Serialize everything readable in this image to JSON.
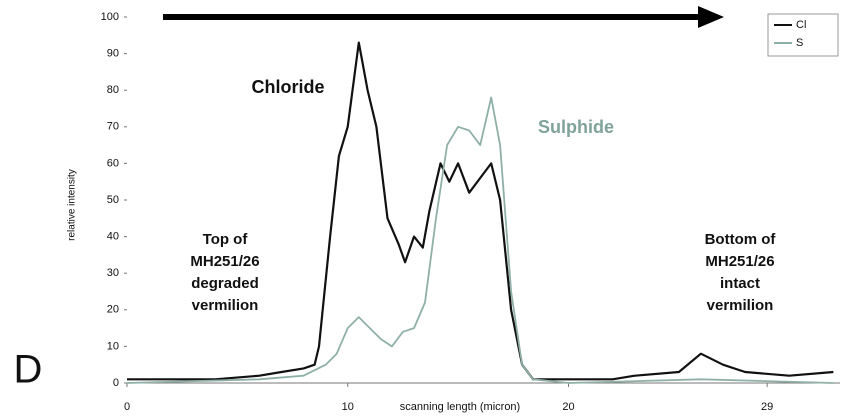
{
  "chart_data": {
    "type": "line",
    "panel_label": "D",
    "x_label": "scanning length (micron)",
    "y_label": "relative intensity",
    "xlim": [
      0,
      32.3
    ],
    "xticks": [
      0,
      10,
      20,
      29
    ],
    "ylim": [
      0,
      100
    ],
    "yticks": [
      0,
      10,
      20,
      30,
      40,
      50,
      60,
      70,
      80,
      90,
      100
    ],
    "legend": "top-right",
    "series": [
      {
        "name": "Cl",
        "color": "#111111",
        "x": [
          0,
          2,
          4,
          6,
          7,
          8,
          8.5,
          8.7,
          9.2,
          9.6,
          10,
          10.5,
          10.9,
          11.3,
          11.8,
          12.3,
          12.6,
          13,
          13.4,
          13.7,
          14.2,
          14.6,
          15,
          15.5,
          16,
          16.5,
          16.9,
          17.4,
          17.9,
          18.4,
          20,
          22,
          23,
          25,
          26,
          27,
          28,
          30,
          32
        ],
        "values": [
          1,
          1,
          1,
          2,
          3,
          4,
          5,
          10,
          40,
          62,
          70,
          93,
          80,
          70,
          45,
          38,
          33,
          40,
          37,
          47,
          60,
          55,
          60,
          52,
          56,
          60,
          50,
          20,
          5,
          1,
          1,
          1,
          2,
          3,
          8,
          5,
          3,
          2,
          3
        ]
      },
      {
        "name": "S",
        "color": "#8fb0a8",
        "x": [
          0,
          6,
          8,
          9,
          9.5,
          10,
          10.5,
          11,
          11.5,
          12,
          12.5,
          13,
          13.5,
          14,
          14.5,
          15,
          15.5,
          16,
          16.5,
          16.9,
          17.4,
          17.9,
          18.4,
          20,
          26,
          32
        ],
        "values": [
          0,
          1,
          2,
          5,
          8,
          15,
          18,
          15,
          12,
          10,
          14,
          15,
          22,
          45,
          65,
          70,
          69,
          65,
          78,
          65,
          25,
          5,
          1,
          0,
          1,
          0
        ]
      }
    ],
    "annotations": [
      {
        "text": [
          "Chloride"
        ],
        "color": "#111111"
      },
      {
        "text": [
          "Sulphide"
        ],
        "color": "#7fa39a"
      },
      {
        "text": [
          "Top of",
          "MH251/26",
          "degraded",
          "vermilion"
        ],
        "color": "#111111"
      },
      {
        "text": [
          "Bottom of",
          "MH251/26",
          "intact",
          "vermilion"
        ],
        "color": "#111111"
      }
    ]
  }
}
